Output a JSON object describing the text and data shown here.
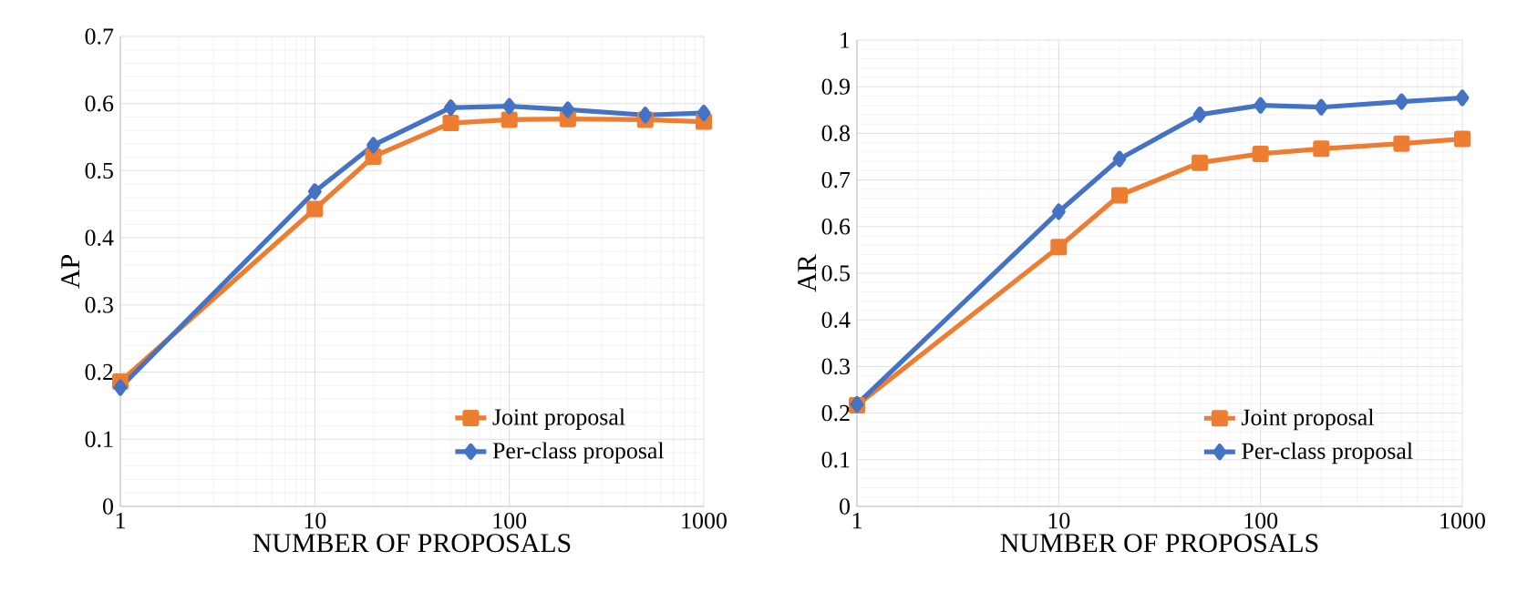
{
  "chart_data": [
    {
      "type": "line",
      "ylabel": "AP",
      "xlabel": "NUMBER OF PROPOSALS",
      "log": "x",
      "grid": true,
      "legend": "bottom right",
      "x": [
        1,
        10,
        20,
        50,
        100,
        200,
        500,
        1000
      ],
      "xlim": [
        1,
        1000
      ],
      "xticks": [
        1,
        10,
        100,
        1000
      ],
      "ylim": [
        0,
        0.7
      ],
      "yticks": [
        0,
        0.1,
        0.2,
        0.3,
        0.4,
        0.5,
        0.6,
        0.7
      ],
      "series": [
        {
          "name": "Joint proposal",
          "color": "#ed7d31",
          "marker": "square",
          "values": [
            0.186,
            0.443,
            0.521,
            0.571,
            0.576,
            0.577,
            0.576,
            0.573
          ]
        },
        {
          "name": "Per-class proposal",
          "color": "#4472c4",
          "marker": "diamond",
          "values": [
            0.177,
            0.469,
            0.538,
            0.594,
            0.596,
            0.591,
            0.583,
            0.586
          ]
        }
      ]
    },
    {
      "type": "line",
      "ylabel": "AR",
      "xlabel": "NUMBER OF PROPOSALS",
      "log": "x",
      "grid": true,
      "legend": "bottom right",
      "x": [
        1,
        10,
        20,
        50,
        100,
        200,
        500,
        1000
      ],
      "xlim": [
        1,
        1000
      ],
      "xticks": [
        1,
        10,
        100,
        1000
      ],
      "ylim": [
        0,
        1
      ],
      "yticks": [
        0,
        0.1,
        0.2,
        0.3,
        0.4,
        0.5,
        0.6,
        0.7,
        0.8,
        0.9,
        1
      ],
      "series": [
        {
          "name": "Joint proposal",
          "color": "#ed7d31",
          "marker": "square",
          "values": [
            0.217,
            0.556,
            0.667,
            0.737,
            0.756,
            0.767,
            0.778,
            0.788
          ]
        },
        {
          "name": "Per-class proposal",
          "color": "#4472c4",
          "marker": "diamond",
          "values": [
            0.219,
            0.632,
            0.745,
            0.84,
            0.86,
            0.856,
            0.868,
            0.876
          ]
        }
      ]
    }
  ]
}
